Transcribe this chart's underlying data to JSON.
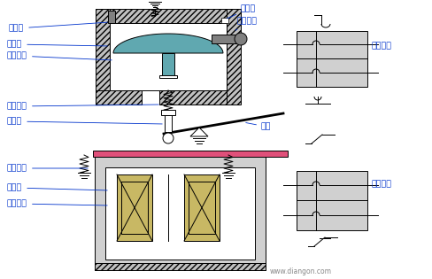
{
  "bg_color": "#ffffff",
  "label_color": "#0033cc",
  "line_color": "#000000",
  "fill_gray": "#c0c0c0",
  "fill_dark_gray": "#808080",
  "fill_teal": "#60a8b0",
  "fill_pink": "#e0507a",
  "fill_olive": "#c8b864",
  "fill_light_gray": "#d0d0d0",
  "fill_white": "#ffffff",
  "watermark": "www.diangon.com",
  "labels": {
    "jin_qi_kong": "进气孔",
    "tiao_jie_luo_ding": "调节螺钉",
    "chu_qi_kong": "出气孔",
    "xiang_pi_mo": "橡皮膜",
    "san_xing_huo_sai": "伞形活塞",
    "shi_fang_tan_huang": "释放弹簧",
    "huo_sai_gan": "活塞杆",
    "gan_gan": "杠杆",
    "wei_dong_kai_guan1": "微动开关",
    "wei_dong_kai_guan2": "微动开关",
    "fu_jian_tan_huang": "恢复弹簧",
    "dong_tie_xin": "动铁心",
    "xi_yin_xian_quan": "吸引线圈"
  }
}
